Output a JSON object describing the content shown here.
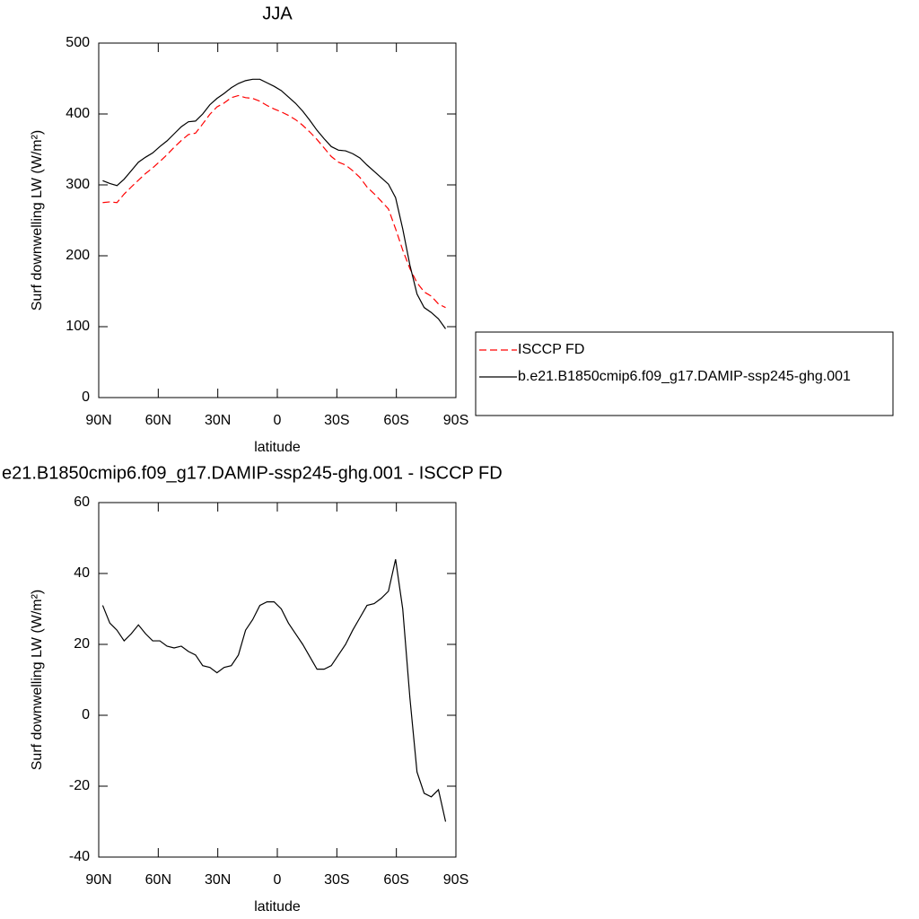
{
  "chart_data": [
    {
      "type": "line",
      "title": "JJA",
      "xlabel": "latitude",
      "ylabel": "Surf downwelling LW (W/m²)",
      "xlim": [
        90,
        -90
      ],
      "xticks": [
        {
          "value": 90,
          "label": "90N"
        },
        {
          "value": 60,
          "label": "60N"
        },
        {
          "value": 30,
          "label": "30N"
        },
        0,
        {
          "value": -30,
          "label": "30S"
        },
        {
          "value": -60,
          "label": "60S"
        },
        {
          "value": -90,
          "label": "90S"
        }
      ],
      "ylim": [
        0,
        500
      ],
      "yticks": [
        0,
        100,
        200,
        300,
        400,
        500
      ],
      "legend": "right",
      "x": [
        88,
        84.4,
        80.8,
        77.2,
        73.6,
        70,
        66.4,
        62.8,
        59.2,
        55.6,
        52,
        48.4,
        44.8,
        41.2,
        37.6,
        34,
        30.4,
        26.8,
        23.2,
        19.6,
        16,
        12.4,
        8.8,
        5.2,
        1.6,
        -2,
        -5.6,
        -9.2,
        -12.8,
        -16.4,
        -20,
        -23.6,
        -27.2,
        -30.8,
        -34.4,
        -38,
        -41.6,
        -45.2,
        -48.8,
        -52.4,
        -56,
        -59.6,
        -63.2,
        -66.8,
        -70.4,
        -74,
        -77.6,
        -81.2,
        -84.8
      ],
      "series": [
        {
          "name": "ISCCP FD",
          "color": "#ff0000",
          "dashed": true,
          "values": [
            275,
            276,
            275,
            287,
            297,
            306.5,
            316,
            324,
            333,
            342.5,
            353,
            362.5,
            371,
            373,
            386,
            399.5,
            410,
            415.5,
            423,
            426,
            423,
            422,
            418,
            412,
            407,
            403,
            398,
            392,
            384,
            374.5,
            364,
            352,
            340,
            332,
            328,
            320,
            310.5,
            297,
            287.5,
            277,
            266,
            238,
            208,
            182,
            162,
            149,
            143,
            132,
            127
          ]
        },
        {
          "name": "b.e21.B1850cmip6.f09_g17.DAMIP-ssp245-ghg.001",
          "color": "#000000",
          "dashed": false,
          "values": [
            306,
            302,
            299,
            308,
            320,
            332,
            339,
            345,
            354,
            362,
            372,
            382,
            389,
            390,
            400,
            413,
            422,
            429,
            437,
            443,
            447,
            449,
            449,
            444,
            439,
            433,
            424,
            415,
            404,
            391,
            377,
            365,
            354,
            349,
            348,
            344,
            338,
            328,
            319,
            310,
            301,
            282,
            238,
            187,
            146,
            127,
            120,
            111,
            97
          ]
        }
      ]
    },
    {
      "type": "line",
      "title": "e21.B1850cmip6.f09_g17.DAMIP-ssp245-ghg.001 - ISCCP FD",
      "xlabel": "latitude",
      "ylabel": "Surf downwelling LW (W/m²)",
      "xlim": [
        90,
        -90
      ],
      "xticks": [
        {
          "value": 90,
          "label": "90N"
        },
        {
          "value": 60,
          "label": "60N"
        },
        {
          "value": 30,
          "label": "30N"
        },
        0,
        {
          "value": -30,
          "label": "30S"
        },
        {
          "value": -60,
          "label": "60S"
        },
        {
          "value": -90,
          "label": "90S"
        }
      ],
      "ylim": [
        -40,
        60
      ],
      "yticks": [
        -40,
        -20,
        0,
        20,
        40,
        60
      ],
      "x": [
        88,
        84.4,
        80.8,
        77.2,
        73.6,
        70,
        66.4,
        62.8,
        59.2,
        55.6,
        52,
        48.4,
        44.8,
        41.2,
        37.6,
        34,
        30.4,
        26.8,
        23.2,
        19.6,
        16,
        12.4,
        8.8,
        5.2,
        1.6,
        -2,
        -5.6,
        -9.2,
        -12.8,
        -16.4,
        -20,
        -23.6,
        -27.2,
        -30.8,
        -34.4,
        -38,
        -41.6,
        -45.2,
        -48.8,
        -52.4,
        -56,
        -59.6,
        -63.2,
        -66.8,
        -70.4,
        -74,
        -77.6,
        -81.2,
        -84.8
      ],
      "series": [
        {
          "color": "#000000",
          "dashed": false,
          "values": [
            31,
            26,
            24,
            21,
            23,
            25.5,
            23,
            21,
            21,
            19.5,
            19,
            19.5,
            18,
            17,
            14,
            13.5,
            12,
            13.5,
            14,
            17,
            24,
            27,
            31,
            32,
            32,
            30,
            26,
            23,
            20,
            16.5,
            13,
            13,
            14,
            17,
            20,
            24,
            27.5,
            31,
            31.5,
            33,
            35,
            44,
            30,
            5,
            -16,
            -22,
            -23,
            -21,
            -30
          ]
        }
      ]
    }
  ]
}
